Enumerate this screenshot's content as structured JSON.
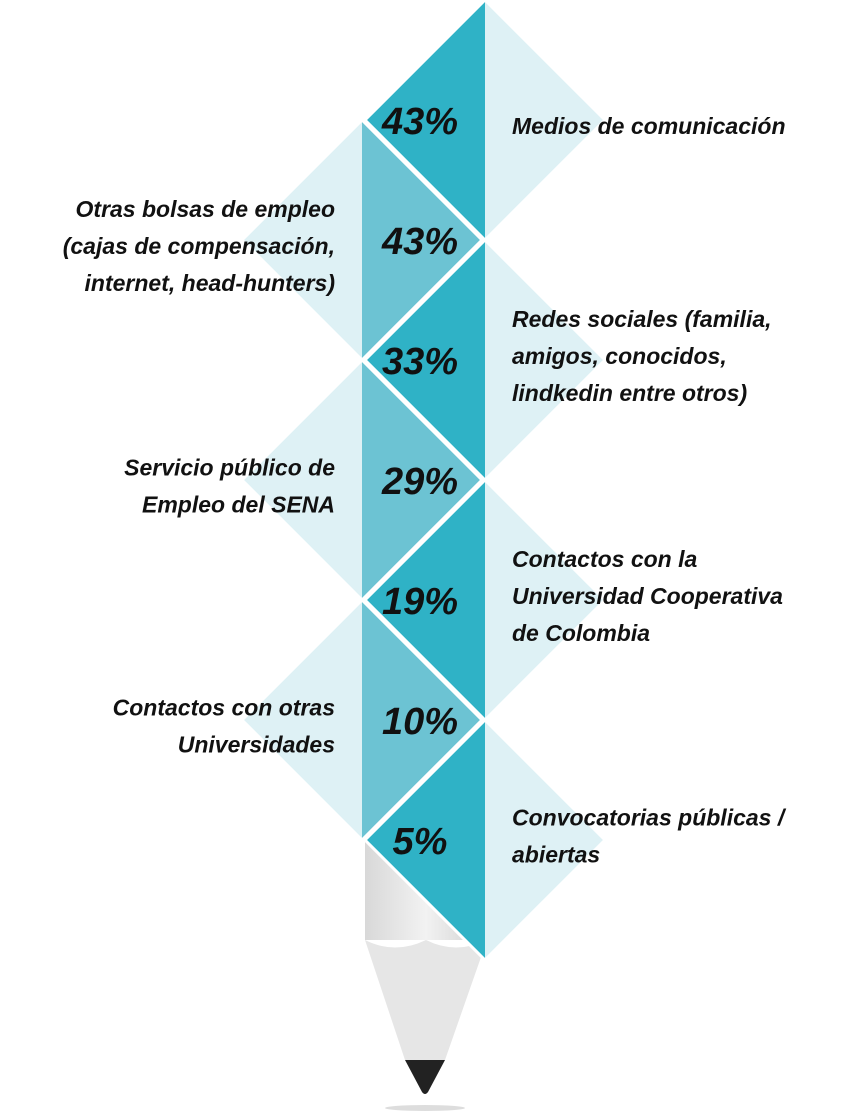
{
  "items": [
    {
      "percent": "43%",
      "label": [
        "Medios de comunicación"
      ]
    },
    {
      "percent": "43%",
      "label": [
        "Otras bolsas de empleo",
        "(cajas de compensación,",
        "internet, head-hunters)"
      ]
    },
    {
      "percent": "33%",
      "label": [
        " Redes sociales (familia,",
        "amigos, conocidos,",
        "lindkedin entre otros)"
      ]
    },
    {
      "percent": "29%",
      "label": [
        "Servicio público de",
        "Empleo del SENA"
      ]
    },
    {
      "percent": "19%",
      "label": [
        " Contactos con la",
        "Universidad Cooperativa",
        "de Colombia"
      ]
    },
    {
      "percent": "10%",
      "label": [
        "Contactos con otras",
        "Universidades"
      ]
    },
    {
      "percent": "5%",
      "label": [
        " Convocatorias públicas /",
        "abiertas"
      ]
    }
  ]
}
